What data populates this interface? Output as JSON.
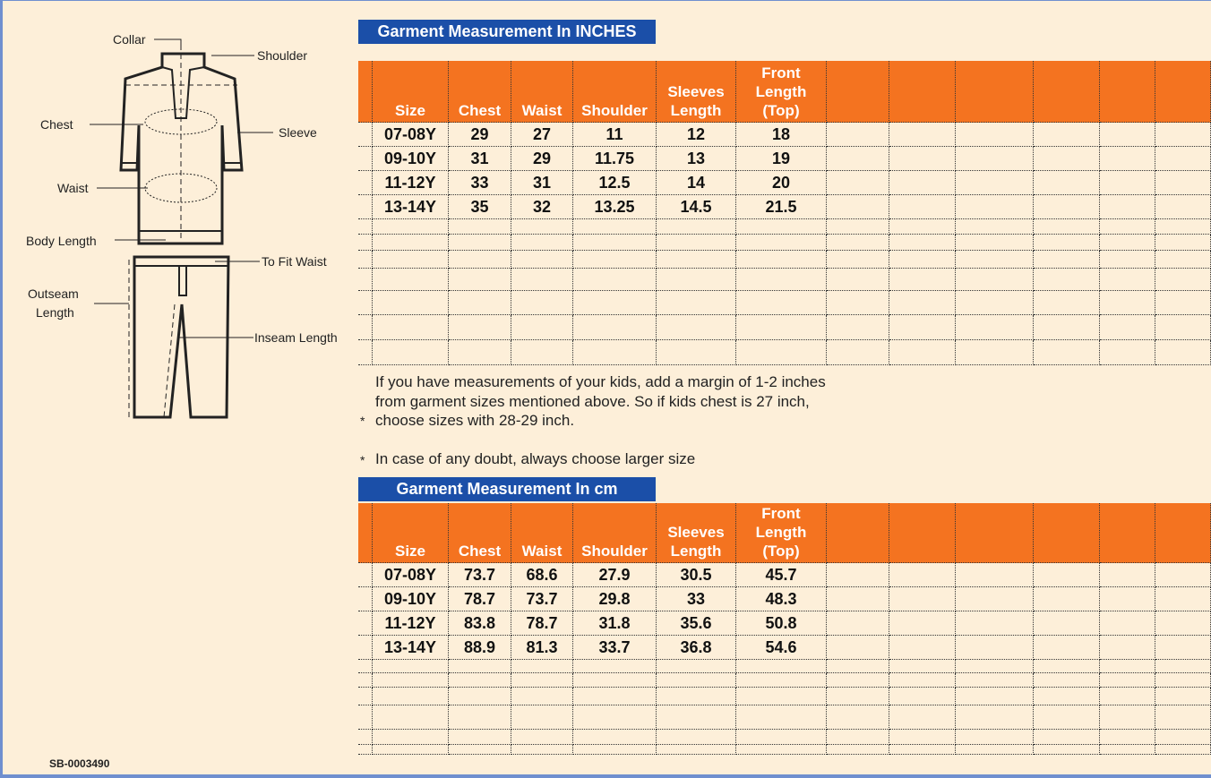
{
  "diagram": {
    "labels": {
      "collar": "Collar",
      "shoulder": "Shoulder",
      "chest": "Chest",
      "sleeve": "Sleeve",
      "waist": "Waist",
      "body_length": "Body Length",
      "to_fit_waist": "To Fit Waist",
      "outseam_length": [
        "Outseam",
        "Length"
      ],
      "inseam_length": "Inseam Length"
    },
    "code": "SB-0003490"
  },
  "tables": [
    {
      "title": "Garment Measurement In INCHES",
      "header": [
        [
          "Size"
        ],
        [
          "Chest"
        ],
        [
          "Waist"
        ],
        [
          "Shoulder"
        ],
        [
          "Sleeves",
          "Length"
        ],
        [
          "Front",
          "Length",
          "(Top)"
        ]
      ],
      "rows": [
        [
          "07-08Y",
          29,
          27,
          11,
          12,
          18
        ],
        [
          "09-10Y",
          31,
          29,
          11.75,
          13,
          19
        ],
        [
          "11-12Y",
          33,
          31,
          12.5,
          14,
          20
        ],
        [
          "13-14Y",
          35,
          32,
          13.25,
          14.5,
          21.5
        ]
      ]
    },
    {
      "title": "Garment Measurement In cm",
      "header": [
        [
          "Size"
        ],
        [
          "Chest"
        ],
        [
          "Waist"
        ],
        [
          "Shoulder"
        ],
        [
          "Sleeves",
          "Length"
        ],
        [
          "Front",
          "Length",
          "(Top)"
        ]
      ],
      "rows": [
        [
          "07-08Y",
          73.7,
          68.6,
          27.9,
          30.5,
          45.7
        ],
        [
          "09-10Y",
          78.7,
          73.7,
          29.8,
          33,
          48.3
        ],
        [
          "11-12Y",
          83.8,
          78.7,
          31.8,
          35.6,
          50.8
        ],
        [
          "13-14Y",
          88.9,
          81.3,
          33.7,
          36.8,
          54.6
        ]
      ]
    }
  ],
  "notes": {
    "bullet": "*",
    "items": [
      "If you have measurements of your kids, add a margin of 1-2 inches from garment sizes mentioned above. So if kids chest is 27 inch, choose sizes with 28-29 inch.",
      "In case of any doubt, always choose larger size"
    ]
  }
}
